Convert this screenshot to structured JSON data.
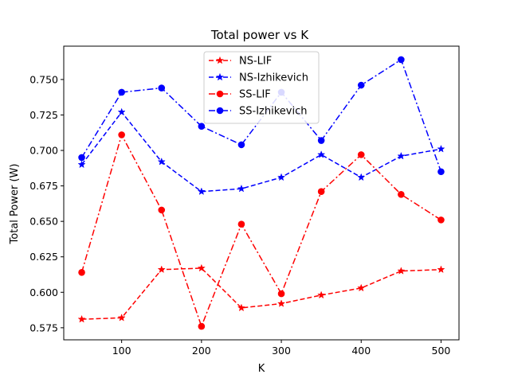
{
  "chart_data": {
    "type": "line",
    "title": "Total power vs K",
    "xlabel": "K",
    "ylabel": "Total Power (W)",
    "xlim": [
      27.5,
      522.5
    ],
    "ylim": [
      0.5665,
      0.7735
    ],
    "xticks": [
      100,
      200,
      300,
      400,
      500
    ],
    "yticks": [
      0.575,
      0.6,
      0.625,
      0.65,
      0.675,
      0.7,
      0.725,
      0.75
    ],
    "grid": false,
    "legend_position": "top-center",
    "x": [
      50,
      100,
      150,
      200,
      250,
      300,
      350,
      400,
      450,
      500
    ],
    "series": [
      {
        "name": "NS-LIF",
        "color": "#ff0000",
        "dash": "dashed",
        "marker": "star",
        "values": [
          0.581,
          0.582,
          0.616,
          0.617,
          0.589,
          0.592,
          0.598,
          0.603,
          0.615,
          0.616
        ]
      },
      {
        "name": "NS-Izhikevich",
        "color": "#0000ff",
        "dash": "dashed",
        "marker": "star",
        "values": [
          0.69,
          0.727,
          0.692,
          0.671,
          0.673,
          0.681,
          0.697,
          0.681,
          0.696,
          0.701
        ]
      },
      {
        "name": "SS-LIF",
        "color": "#ff0000",
        "dash": "dashdot",
        "marker": "circle",
        "values": [
          0.614,
          0.711,
          0.658,
          0.576,
          0.648,
          0.599,
          0.671,
          0.697,
          0.669,
          0.651
        ]
      },
      {
        "name": "SS-Izhikevich",
        "color": "#0000ff",
        "dash": "dashdot",
        "marker": "circle",
        "values": [
          0.695,
          0.741,
          0.744,
          0.717,
          0.704,
          0.741,
          0.707,
          0.746,
          0.764,
          0.685
        ]
      }
    ]
  }
}
